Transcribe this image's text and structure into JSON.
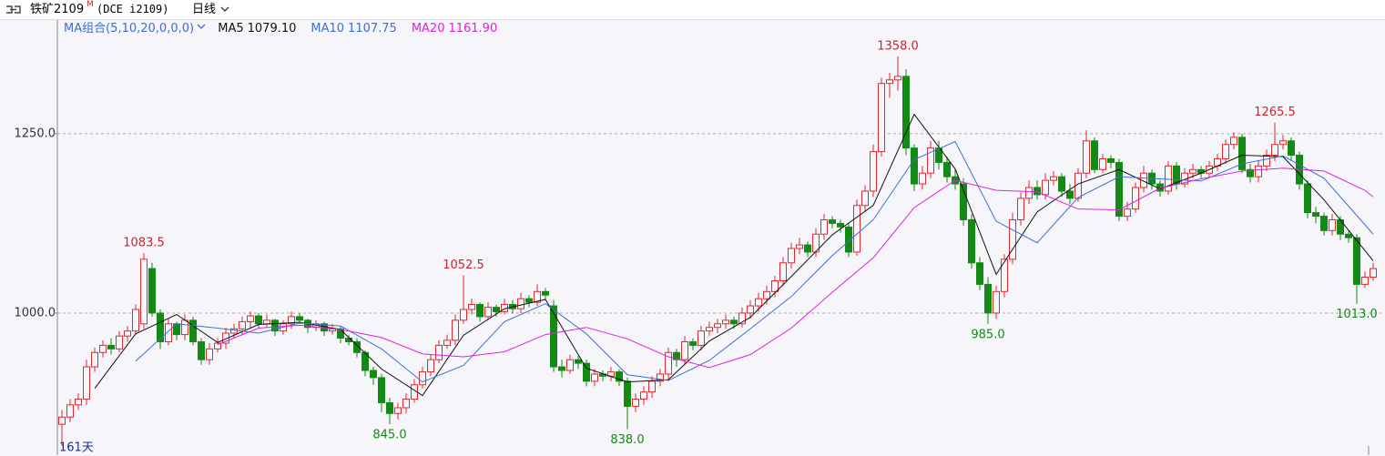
{
  "header": {
    "symbol": "铁矿2109",
    "badge": "M",
    "code": "(DCE i2109)",
    "period": "日线",
    "ma_group": "MA组合(5,10,20,0,0,0)"
  },
  "chart_data": {
    "type": "candlestick",
    "days_label": "161天",
    "ylim": [
      802,
      1411
    ],
    "yticks": [
      {
        "value": 1000,
        "label": "1000.0"
      },
      {
        "value": 1250,
        "label": "1250.0"
      }
    ],
    "grid": true,
    "up_color": "#e0282e",
    "down_color": "#138a13",
    "open": [
      845,
      855,
      872,
      880,
      925,
      945,
      955,
      950,
      968,
      975,
      985,
      1062,
      1000,
      960,
      985,
      970,
      990,
      960,
      935,
      950,
      958,
      972,
      978,
      988,
      996,
      985,
      990,
      975,
      985,
      995,
      990,
      980,
      985,
      975,
      978,
      965,
      960,
      945,
      920,
      910,
      875,
      860,
      868,
      880,
      900,
      918,
      935,
      955,
      962,
      990,
      1005,
      1012,
      995,
      1008,
      1002,
      1012,
      1006,
      1020,
      1015,
      1030,
      1010,
      925,
      920,
      935,
      930,
      905,
      915,
      912,
      918,
      905,
      870,
      880,
      890,
      905,
      915,
      945,
      935,
      960,
      955,
      975,
      980,
      985,
      990,
      985,
      1000,
      1010,
      1020,
      1030,
      1045,
      1070,
      1090,
      1095,
      1085,
      1110,
      1130,
      1125,
      1120,
      1085,
      1150,
      1170,
      1225,
      1320,
      1325,
      1330,
      1230,
      1180,
      1195,
      1230,
      1210,
      1190,
      1180,
      1130,
      1070,
      1040,
      1000,
      1030,
      1075,
      1130,
      1160,
      1175,
      1165,
      1185,
      1190,
      1170,
      1160,
      1195,
      1240,
      1200,
      1215,
      1210,
      1135,
      1145,
      1175,
      1195,
      1180,
      1170,
      1205,
      1180,
      1195,
      1200,
      1195,
      1205,
      1215,
      1235,
      1245,
      1200,
      1190,
      1205,
      1220,
      1235,
      1240,
      1220,
      1180,
      1140,
      1135,
      1115,
      1130,
      1110,
      1105,
      1040,
      1050
    ],
    "high": [
      865,
      880,
      888,
      935,
      952,
      962,
      965,
      975,
      982,
      1012,
      1083.5,
      1070,
      1005,
      992,
      988,
      998,
      995,
      965,
      958,
      965,
      980,
      985,
      995,
      1002,
      1000,
      998,
      992,
      990,
      1002,
      1000,
      992,
      990,
      988,
      985,
      982,
      970,
      965,
      948,
      925,
      915,
      882,
      875,
      888,
      908,
      925,
      942,
      962,
      970,
      998,
      1052.5,
      1020,
      1015,
      1015,
      1012,
      1020,
      1018,
      1028,
      1025,
      1040,
      1035,
      1018,
      935,
      942,
      940,
      935,
      922,
      920,
      925,
      922,
      910,
      888,
      898,
      912,
      922,
      952,
      950,
      968,
      965,
      982,
      988,
      992,
      998,
      995,
      1008,
      1018,
      1028,
      1038,
      1052,
      1078,
      1098,
      1105,
      1100,
      1118,
      1138,
      1135,
      1130,
      1125,
      1158,
      1178,
      1235,
      1328,
      1335,
      1358,
      1340,
      1235,
      1205,
      1240,
      1240,
      1218,
      1200,
      1188,
      1138,
      1078,
      1050,
      1038,
      1082,
      1140,
      1168,
      1185,
      1185,
      1195,
      1198,
      1195,
      1180,
      1202,
      1255,
      1245,
      1222,
      1220,
      1215,
      1155,
      1182,
      1205,
      1200,
      1185,
      1212,
      1210,
      1202,
      1208,
      1205,
      1212,
      1222,
      1242,
      1252,
      1250,
      1208,
      1212,
      1228,
      1265.5,
      1248,
      1245,
      1225,
      1185,
      1148,
      1140,
      1138,
      1135,
      1115,
      1110,
      1058,
      1070
    ],
    "low": [
      815,
      848,
      865,
      872,
      918,
      938,
      942,
      945,
      960,
      970,
      978,
      995,
      950,
      955,
      962,
      962,
      955,
      928,
      928,
      945,
      950,
      965,
      970,
      980,
      978,
      980,
      968,
      970,
      978,
      985,
      972,
      975,
      968,
      970,
      958,
      955,
      938,
      912,
      900,
      862,
      845,
      852,
      860,
      875,
      895,
      912,
      930,
      950,
      955,
      985,
      998,
      988,
      990,
      995,
      998,
      1000,
      1000,
      1008,
      1010,
      1018,
      918,
      910,
      915,
      922,
      898,
      898,
      905,
      905,
      898,
      838,
      862,
      872,
      882,
      898,
      908,
      925,
      928,
      948,
      948,
      968,
      972,
      978,
      978,
      980,
      992,
      1002,
      1012,
      1022,
      1038,
      1062,
      1082,
      1078,
      1078,
      1102,
      1118,
      1112,
      1078,
      1080,
      1142,
      1162,
      1218,
      1300,
      1310,
      1220,
      1170,
      1172,
      1188,
      1200,
      1182,
      1172,
      1122,
      1062,
      1032,
      985,
      992,
      1022,
      1068,
      1122,
      1152,
      1158,
      1158,
      1178,
      1162,
      1152,
      1155,
      1188,
      1195,
      1195,
      1202,
      1128,
      1128,
      1140,
      1168,
      1172,
      1162,
      1165,
      1172,
      1175,
      1188,
      1188,
      1188,
      1198,
      1208,
      1228,
      1195,
      1182,
      1182,
      1198,
      1212,
      1228,
      1212,
      1172,
      1132,
      1125,
      1108,
      1108,
      1102,
      1098,
      1013,
      1035,
      1045
    ],
    "close": [
      855,
      872,
      880,
      925,
      945,
      955,
      950,
      968,
      975,
      1005,
      1075,
      1000,
      960,
      985,
      970,
      990,
      960,
      935,
      950,
      958,
      972,
      978,
      988,
      996,
      985,
      990,
      975,
      985,
      995,
      990,
      980,
      985,
      975,
      978,
      965,
      960,
      945,
      920,
      910,
      875,
      860,
      868,
      880,
      900,
      918,
      935,
      955,
      962,
      990,
      1005,
      1012,
      995,
      1008,
      1002,
      1012,
      1006,
      1020,
      1015,
      1030,
      1025,
      925,
      920,
      935,
      930,
      905,
      915,
      912,
      918,
      905,
      870,
      880,
      890,
      905,
      915,
      945,
      935,
      960,
      955,
      975,
      980,
      985,
      990,
      985,
      1000,
      1010,
      1020,
      1030,
      1045,
      1070,
      1090,
      1095,
      1085,
      1110,
      1130,
      1125,
      1120,
      1085,
      1150,
      1170,
      1225,
      1320,
      1325,
      1330,
      1230,
      1180,
      1195,
      1230,
      1210,
      1190,
      1180,
      1130,
      1070,
      1040,
      1000,
      1030,
      1075,
      1130,
      1160,
      1175,
      1165,
      1185,
      1190,
      1170,
      1160,
      1195,
      1240,
      1200,
      1215,
      1210,
      1135,
      1145,
      1175,
      1195,
      1180,
      1170,
      1205,
      1180,
      1195,
      1200,
      1195,
      1205,
      1215,
      1235,
      1245,
      1200,
      1190,
      1205,
      1220,
      1235,
      1240,
      1220,
      1180,
      1140,
      1135,
      1115,
      1130,
      1110,
      1105,
      1040,
      1050,
      1062
    ],
    "series": [
      {
        "name": "MA5",
        "color": "#111111",
        "current": {
          "value": 1079.1,
          "label": "1079.10"
        },
        "x": [
          4,
          9,
          14,
          19,
          24,
          29,
          34,
          39,
          44,
          49,
          54,
          59,
          64,
          69,
          74,
          79,
          84,
          89,
          94,
          99,
          104,
          109,
          114,
          119,
          124,
          129,
          134,
          139,
          144,
          149,
          154,
          159,
          160
        ],
        "values": [
          895,
          971,
          998,
          959,
          984,
          987,
          977,
          922,
          885,
          969,
          1006,
          1019,
          923,
          904,
          907,
          961,
          994,
          1051,
          1109,
          1150,
          1277,
          1201,
          1054,
          1141,
          1180,
          1200,
          1173,
          1195,
          1220,
          1218,
          1158,
          1087,
          1073
        ]
      },
      {
        "name": "MA10",
        "color": "#3b6fd4",
        "current": {
          "value": 1107.75,
          "label": "1107.75"
        },
        "x": [
          9,
          14,
          19,
          24,
          29,
          34,
          39,
          44,
          49,
          54,
          59,
          64,
          69,
          74,
          79,
          84,
          89,
          94,
          99,
          104,
          109,
          114,
          119,
          124,
          129,
          134,
          139,
          144,
          149,
          154,
          159,
          160
        ],
        "values": [
          933,
          985,
          979,
          972,
          986,
          982,
          950,
          904,
          927,
          988,
          1013,
          971,
          914,
          906,
          934,
          978,
          1023,
          1080,
          1130,
          1214,
          1239,
          1128,
          1098,
          1161,
          1190,
          1187,
          1184,
          1208,
          1219,
          1188,
          1123,
          1110
        ]
      },
      {
        "name": "MA20",
        "color": "#e020e0",
        "current": {
          "value": 1161.9,
          "label": "1161.90"
        },
        "x": [
          19,
          24,
          29,
          34,
          39,
          44,
          49,
          54,
          59,
          64,
          69,
          74,
          79,
          84,
          89,
          94,
          99,
          104,
          109,
          114,
          119,
          124,
          129,
          134,
          139,
          144,
          149,
          154,
          159,
          160
        ],
        "values": [
          956,
          979,
          983,
          977,
          966,
          943,
          939,
          946,
          970,
          980,
          964,
          939,
          924,
          942,
          979,
          1029,
          1077,
          1147,
          1185,
          1171,
          1169,
          1145,
          1144,
          1174,
          1187,
          1198,
          1202,
          1198,
          1171,
          1162
        ]
      }
    ],
    "annotations": [
      {
        "index": 10,
        "value": 1083.5,
        "label": "1083.5",
        "color": "#d0202a"
      },
      {
        "index": 40,
        "value": 845,
        "label": "845.0",
        "color": "#138a13"
      },
      {
        "index": 49,
        "value": 1052.5,
        "label": "1052.5",
        "color": "#d0202a"
      },
      {
        "index": 69,
        "value": 838,
        "label": "838.0",
        "color": "#138a13"
      },
      {
        "index": 102,
        "value": 1358,
        "label": "1358.0",
        "color": "#d0202a"
      },
      {
        "index": 113,
        "value": 985,
        "label": "985.0",
        "color": "#138a13"
      },
      {
        "index": 148,
        "value": 1265.5,
        "label": "1265.5",
        "color": "#d0202a"
      },
      {
        "index": 158,
        "value": 1013,
        "label": "1013.0",
        "color": "#138a13"
      }
    ]
  }
}
